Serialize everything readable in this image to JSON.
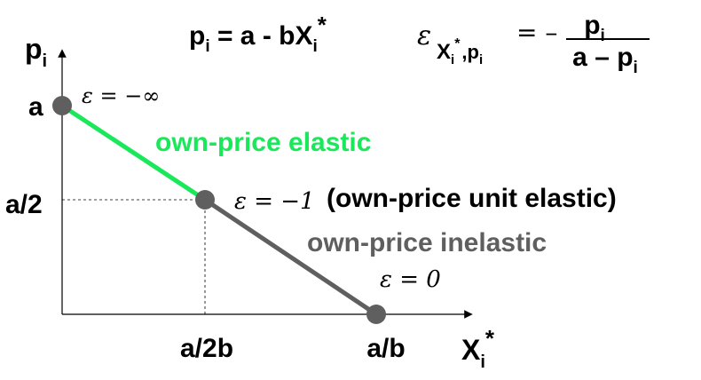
{
  "equations": {
    "demand": {
      "lhs": "p",
      "lhs_sub": "i",
      "mid": " = a - bX",
      "rhs_sub": "i",
      "rhs_sup": "*"
    },
    "elasticity": {
      "eps": "ε",
      "sub_x": "X",
      "sub_i": "i",
      "sub_star": "*",
      "sub_comma": ",p",
      "sub_pi": "i",
      "eq": "= –",
      "numerator": "p",
      "numerator_sub": "i",
      "denominator": "a – p",
      "denominator_sub": "i"
    }
  },
  "axes": {
    "y_label": "p",
    "y_label_sub": "i",
    "x_label": "X",
    "x_label_sub": "i",
    "x_label_sup": "*",
    "y_ticks": {
      "a": "a",
      "a_half": "a/2"
    },
    "x_ticks": {
      "a_2b": "a/2b",
      "a_b": "a/b"
    }
  },
  "annotations": {
    "eps_top": "ε = −∞",
    "eps_mid": "ε = −1",
    "eps_bottom": "ε = 0",
    "elastic": "own-price elastic",
    "unit_elastic": "(own-price unit elastic)",
    "inelastic": "own-price inelastic"
  },
  "colors": {
    "elastic": "#19e85a",
    "inelastic": "#5f5f5f",
    "point": "#5f5f5f",
    "axis": "#000000",
    "text": "#000000"
  }
}
